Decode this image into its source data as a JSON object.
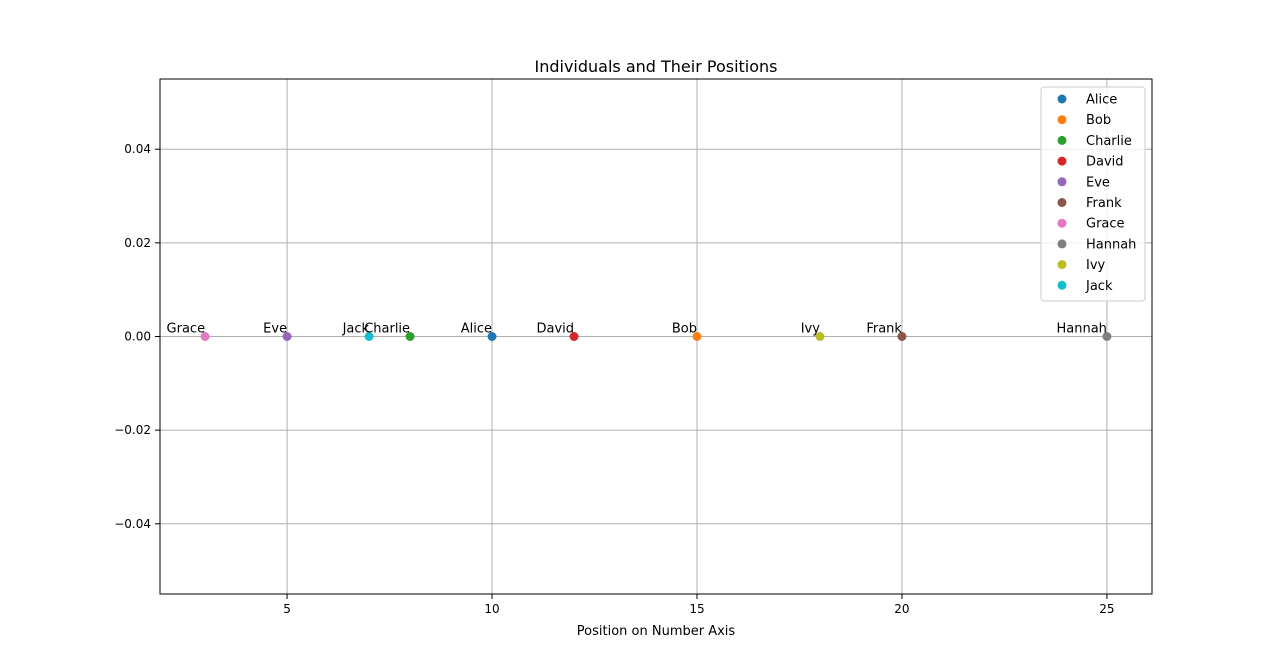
{
  "chart_data": {
    "type": "scatter",
    "title": "Individuals and Their Positions",
    "xlabel": "Position on Number Axis",
    "ylabel": "",
    "xlim": [
      1.9,
      26.1
    ],
    "ylim": [
      -0.055,
      0.055
    ],
    "x_ticks": [
      5,
      10,
      15,
      20,
      25
    ],
    "x_tick_labels": [
      "5",
      "10",
      "15",
      "20",
      "25"
    ],
    "y_ticks": [
      0.04,
      0.02,
      0.0,
      -0.02,
      -0.04
    ],
    "y_tick_labels": [
      "0.04",
      "0.02",
      "0.00",
      "−0.02",
      "−0.04"
    ],
    "grid": true,
    "legend_position": "top-right",
    "series": [
      {
        "name": "Alice",
        "x": 10,
        "y": 0,
        "color": "#1f77b4"
      },
      {
        "name": "Bob",
        "x": 15,
        "y": 0,
        "color": "#ff7f0e"
      },
      {
        "name": "Charlie",
        "x": 8,
        "y": 0,
        "color": "#2ca02c"
      },
      {
        "name": "David",
        "x": 12,
        "y": 0,
        "color": "#d62728"
      },
      {
        "name": "Eve",
        "x": 5,
        "y": 0,
        "color": "#9467bd"
      },
      {
        "name": "Frank",
        "x": 20,
        "y": 0,
        "color": "#8c564b"
      },
      {
        "name": "Grace",
        "x": 3,
        "y": 0,
        "color": "#e377c2"
      },
      {
        "name": "Hannah",
        "x": 25,
        "y": 0,
        "color": "#7f7f7f"
      },
      {
        "name": "Ivy",
        "x": 18,
        "y": 0,
        "color": "#bcbd22"
      },
      {
        "name": "Jack",
        "x": 7,
        "y": 0,
        "color": "#17becf"
      }
    ]
  }
}
